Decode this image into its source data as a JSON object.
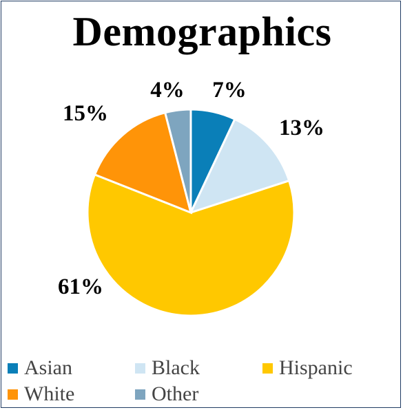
{
  "chart_data": {
    "type": "pie",
    "title": "Demographics",
    "categories": [
      "Asian",
      "Black",
      "Hispanic",
      "White",
      "Other"
    ],
    "values": [
      7,
      13,
      61,
      15,
      4
    ],
    "labels": [
      "7%",
      "13%",
      "61%",
      "15%",
      "4%"
    ],
    "colors": [
      "#0a7fb8",
      "#cfe5f3",
      "#ffc800",
      "#ff9408",
      "#7ea5bf"
    ],
    "legend_position": "bottom"
  }
}
